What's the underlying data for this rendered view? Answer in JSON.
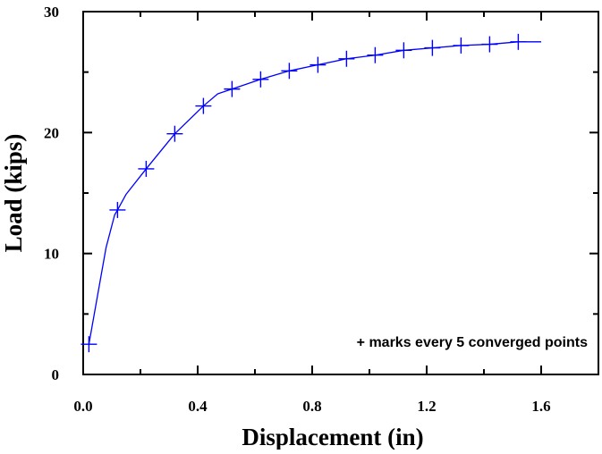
{
  "chart_data": {
    "type": "line",
    "xlabel": "Displacement (in)",
    "ylabel": "Load (kips)",
    "xlim": [
      0,
      1.8
    ],
    "ylim": [
      0,
      30
    ],
    "x_ticks": [
      "0.0",
      "0.4",
      "0.8",
      "1.2",
      "1.6"
    ],
    "y_ticks": [
      "0",
      "10",
      "20",
      "30"
    ],
    "annotation": "+ marks every 5 converged points",
    "grid": false,
    "colors": {
      "series": "#0000ff",
      "axes": "#000000",
      "background": "#ffffff"
    },
    "series": [
      {
        "curve": {
          "x": [
            0.02,
            0.05,
            0.08,
            0.11,
            0.12,
            0.15,
            0.22,
            0.32,
            0.42,
            0.47,
            0.52,
            0.62,
            0.72,
            0.82,
            0.92,
            1.02,
            1.12,
            1.22,
            1.32,
            1.42,
            1.52,
            1.6
          ],
          "y": [
            2.5,
            6.5,
            10.5,
            13.2,
            13.6,
            14.9,
            17.0,
            19.9,
            22.2,
            23.2,
            23.6,
            24.4,
            25.1,
            25.6,
            26.1,
            26.4,
            26.8,
            27.0,
            27.2,
            27.3,
            27.5,
            27.5
          ]
        },
        "markers": {
          "x": [
            0.02,
            0.12,
            0.22,
            0.32,
            0.42,
            0.52,
            0.62,
            0.72,
            0.82,
            0.92,
            1.02,
            1.12,
            1.22,
            1.32,
            1.42,
            1.52
          ],
          "y": [
            2.5,
            13.6,
            17.0,
            19.9,
            22.2,
            23.6,
            24.4,
            25.1,
            25.6,
            26.1,
            26.4,
            26.8,
            27.0,
            27.2,
            27.3,
            27.5
          ]
        }
      }
    ]
  }
}
